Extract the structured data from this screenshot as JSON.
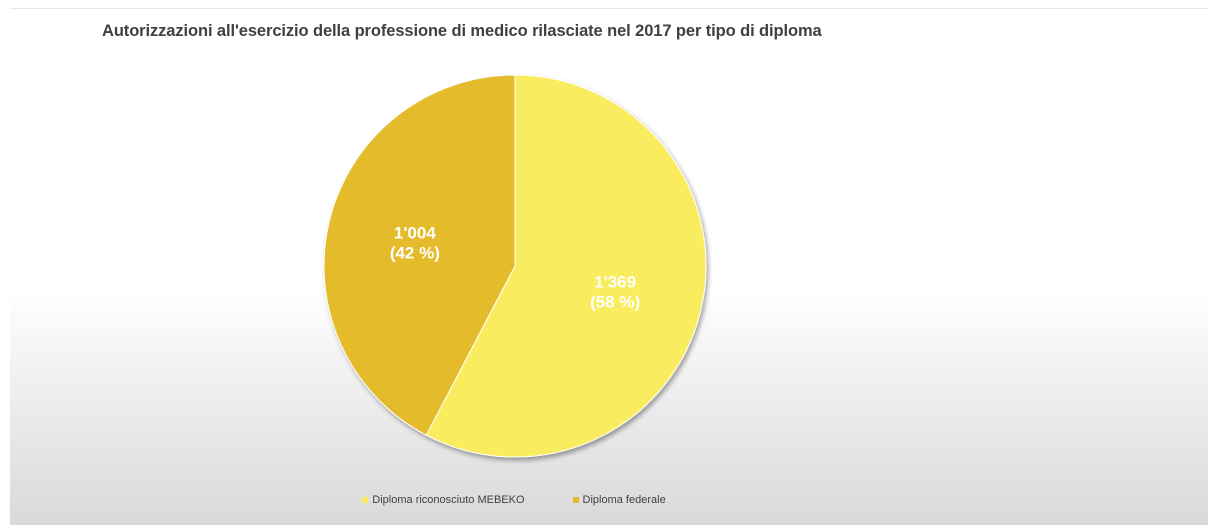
{
  "chart_data": {
    "type": "pie",
    "title": "Autorizzazioni all'esercizio della professione di medico rilasciate nel 2017 per tipo di diploma",
    "slices": [
      {
        "name": "Diploma riconosciuto MEBEKO",
        "value": 1369,
        "value_label": "1'369",
        "percent_label": "(58 %)",
        "color": "#f9ec5e"
      },
      {
        "name": "Diploma federale",
        "value": 1004,
        "value_label": "1'004",
        "percent_label": "(42 %)",
        "color": "#e4bb2a"
      }
    ],
    "legend_placement": "bottom"
  }
}
